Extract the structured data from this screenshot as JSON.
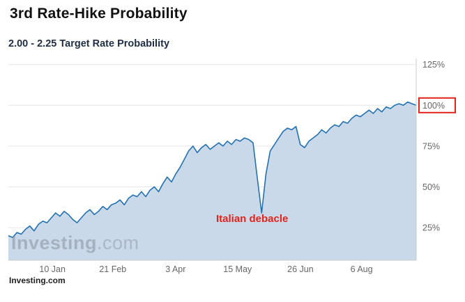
{
  "page": {
    "title": "3rd Rate-Hike Probability",
    "subtitle": "2.00 - 2.25 Target Rate Probability",
    "source": "Investing.com"
  },
  "watermark": {
    "bold": "Investing",
    "light": ".com"
  },
  "annotation": {
    "text": "Italian debacle",
    "color": "#e2231a"
  },
  "chart_data": {
    "type": "area",
    "title": "3rd Rate-Hike Probability",
    "subtitle": "2.00 - 2.25 Target Rate Probability",
    "ylim": [
      5,
      127
    ],
    "yticks": [
      25,
      50,
      75,
      100,
      125
    ],
    "ytick_suffix": "%",
    "grid": true,
    "legend": "none",
    "xticks": [
      {
        "label": "10 Jan",
        "pos": 0.108
      },
      {
        "label": "21 Feb",
        "pos": 0.256
      },
      {
        "label": "3 Apr",
        "pos": 0.41
      },
      {
        "label": "15 May",
        "pos": 0.562
      },
      {
        "label": "26 Jun",
        "pos": 0.716
      },
      {
        "label": "6 Aug",
        "pos": 0.866
      }
    ],
    "highlight": {
      "ytick": 100,
      "style": "red-box"
    },
    "annotations": [
      {
        "text": "Italian debacle",
        "near_x_fraction": 0.62,
        "near_value": 34
      }
    ],
    "series": [
      {
        "name": "2.00 - 2.25 Target Rate Probability (%)",
        "values": [
          20,
          19,
          22,
          21,
          24,
          26,
          23,
          27,
          29,
          28,
          31,
          34,
          32,
          35,
          33,
          30,
          28,
          31,
          34,
          36,
          33,
          35,
          38,
          36,
          39,
          40,
          42,
          39,
          43,
          45,
          44,
          47,
          44,
          48,
          50,
          47,
          52,
          56,
          53,
          58,
          62,
          67,
          72,
          75,
          71,
          74,
          76,
          73,
          75,
          77,
          75,
          78,
          76,
          79,
          78,
          80,
          79,
          77,
          55,
          34,
          58,
          72,
          76,
          80,
          84,
          86,
          85,
          87,
          76,
          74,
          78,
          80,
          82,
          85,
          83,
          86,
          88,
          87,
          90,
          89,
          92,
          94,
          93,
          95,
          97,
          95,
          98,
          96,
          99,
          98,
          100,
          101,
          100,
          102,
          101,
          100
        ]
      }
    ],
    "colors": {
      "line": "#2271b3",
      "fill": "#c9d9e9",
      "grid": "#e6e6e6",
      "axis": "#cccccc",
      "tick_text": "#666666",
      "red": "#e2231a"
    }
  }
}
